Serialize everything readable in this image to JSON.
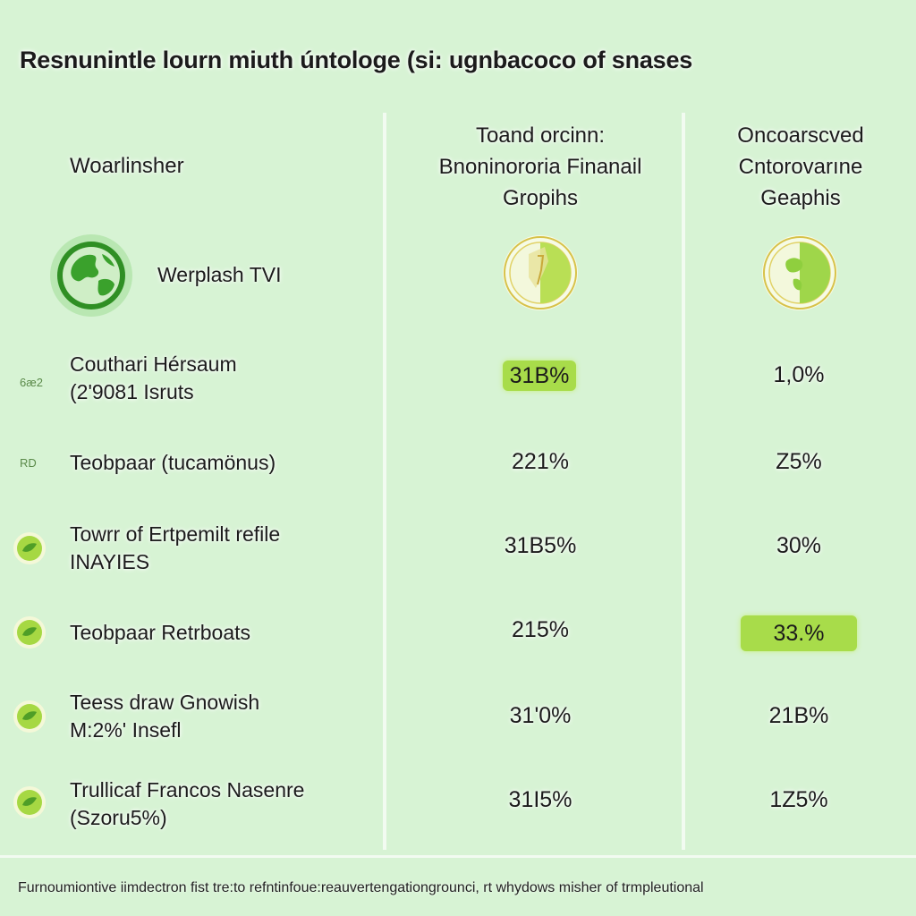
{
  "title": "Resnunintle lourn miuth úntologe (si: ugnbacoco of snases",
  "columns": {
    "left_header": "Woarlinsher",
    "mid_header": [
      "Toand orcinn:",
      "Bnoninororia Finanail",
      "Gropihs"
    ],
    "right_header": [
      "Oncoarscved",
      "Cntorovarıne",
      "Geaphis"
    ]
  },
  "brand": {
    "label": "Werplash TVI",
    "icon": "globe-icon"
  },
  "rows": [
    {
      "tag": "6æ2",
      "label": [
        "Couthari Hérsaum",
        "(2'9081 Isruts"
      ],
      "mid": "31B%",
      "right": "1,0%",
      "mid_highlight": true,
      "right_highlight": false,
      "icon": ""
    },
    {
      "tag": "RD",
      "label": [
        "Teobpaar (tucamönus)"
      ],
      "mid": "221%",
      "right": "Z5%",
      "mid_highlight": false,
      "right_highlight": false,
      "icon": ""
    },
    {
      "tag": "",
      "label": [
        "Towrr of Ertpemilt refile",
        "INAYIES"
      ],
      "mid": "31B5%",
      "right": "30%",
      "mid_highlight": false,
      "right_highlight": false,
      "icon": "leaf-badge-icon"
    },
    {
      "tag": "",
      "label": [
        "Teobpaar Retrboats"
      ],
      "mid": "215%",
      "right": "33.%",
      "mid_highlight": false,
      "right_highlight": true,
      "icon": "leaf-badge-icon"
    },
    {
      "tag": "",
      "label": [
        "Teess draw Gnowish",
        "M:2%' Insefl"
      ],
      "mid": "31'0%",
      "right": "21B%",
      "mid_highlight": false,
      "right_highlight": false,
      "icon": "leaf-badge-icon"
    },
    {
      "tag": "",
      "label": [
        "Trullicaf Francos Nasenre",
        "(Szoru5%)"
      ],
      "mid": "31I5%",
      "right": "1Z5%",
      "mid_highlight": false,
      "right_highlight": false,
      "icon": "leaf-badge-icon"
    }
  ],
  "footer": "Furnoumiontive iimdectron fist tre:to refntinfoue:reauvertengationgrounci, rt whydows misher of trmpleutional",
  "colors": {
    "background": "#d7f3d4",
    "accent_green": "#3a9e2a",
    "highlight": "#a8dc4a"
  }
}
